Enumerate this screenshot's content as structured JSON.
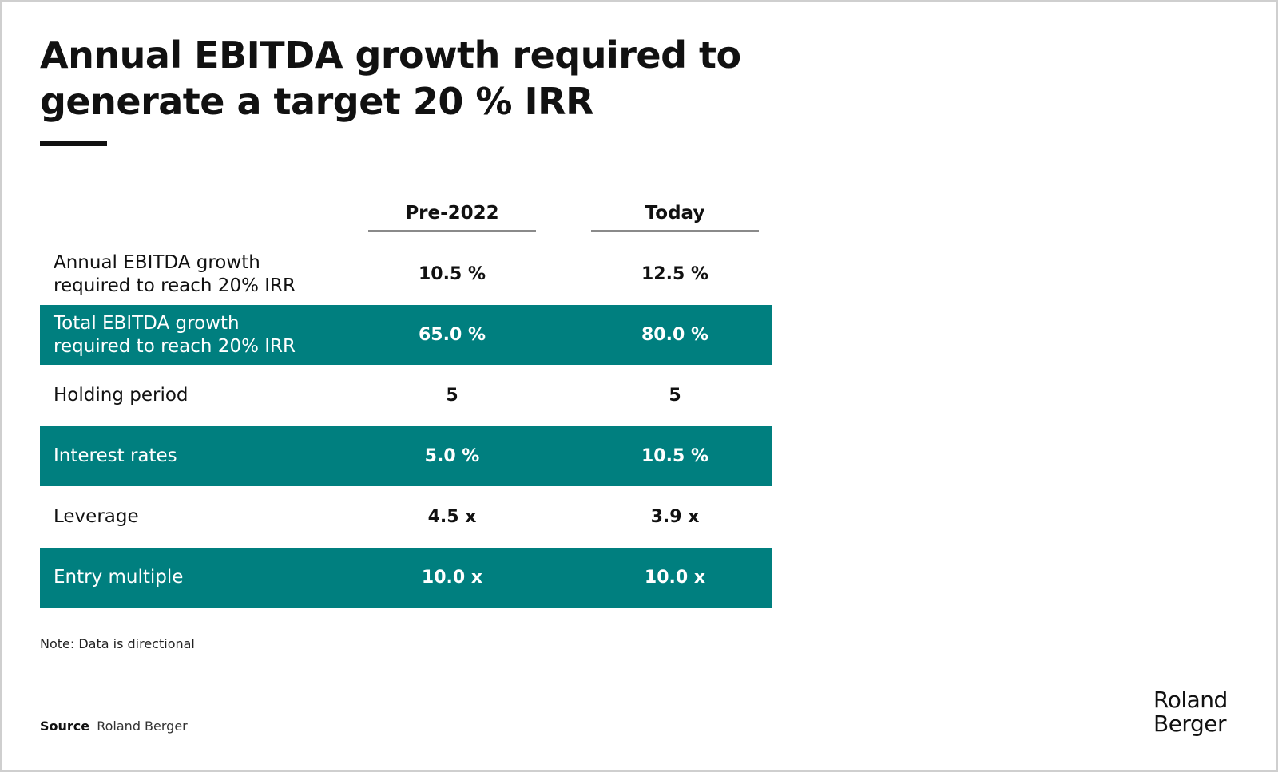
{
  "title": "Annual EBITDA growth required to generate a target 20 % IRR",
  "columns": [
    "Pre-2022",
    "Today"
  ],
  "rows": [
    {
      "label": "Annual EBITDA growth\nrequired to reach 20% IRR",
      "pre": "10.5 %",
      "today": "12.5 %",
      "shaded": false
    },
    {
      "label": "Total EBITDA growth\nrequired to reach 20% IRR",
      "pre": "65.0 %",
      "today": "80.0 %",
      "shaded": true
    },
    {
      "label": "Holding period",
      "pre": "5",
      "today": "5",
      "shaded": false
    },
    {
      "label": "Interest rates",
      "pre": "5.0 %",
      "today": "10.5 %",
      "shaded": true
    },
    {
      "label": "Leverage",
      "pre": "4.5 x",
      "today": "3.9 x",
      "shaded": false
    },
    {
      "label": "Entry multiple",
      "pre": "10.0 x",
      "today": "10.0 x",
      "shaded": true
    }
  ],
  "note": "Note: Data is directional",
  "source": {
    "label": "Source",
    "text": "Roland Berger"
  },
  "logo": {
    "line1": "Roland",
    "line2": "Berger"
  },
  "colors": {
    "accent": "#007f7f",
    "text": "#111111"
  },
  "chart_data": {
    "type": "table",
    "title": "Annual EBITDA growth required to generate a target 20 % IRR",
    "columns": [
      "Pre-2022",
      "Today"
    ],
    "rows": [
      {
        "metric": "Annual EBITDA growth required to reach 20% IRR",
        "values": [
          "10.5 %",
          "12.5 %"
        ]
      },
      {
        "metric": "Total EBITDA growth required to reach 20% IRR",
        "values": [
          "65.0 %",
          "80.0 %"
        ]
      },
      {
        "metric": "Holding period",
        "values": [
          "5",
          "5"
        ]
      },
      {
        "metric": "Interest rates",
        "values": [
          "5.0 %",
          "10.5 %"
        ]
      },
      {
        "metric": "Leverage",
        "values": [
          "4.5 x",
          "3.9 x"
        ]
      },
      {
        "metric": "Entry multiple",
        "values": [
          "10.0 x",
          "10.0 x"
        ]
      }
    ]
  }
}
